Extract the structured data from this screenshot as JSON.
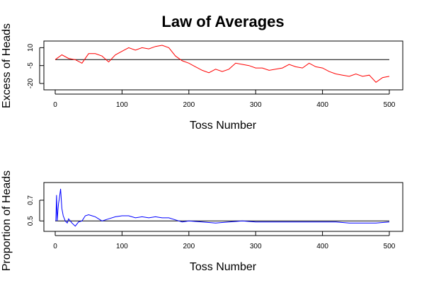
{
  "page": {
    "title": "Law of Averages"
  },
  "chart_data": [
    {
      "type": "line",
      "title": "",
      "xlabel": "Toss Number",
      "ylabel": "Excess of Heads",
      "xlim": [
        0,
        500
      ],
      "ylim": [
        -20,
        12
      ],
      "x_ticks": [
        0,
        100,
        200,
        300,
        400,
        500
      ],
      "y_ticks": [
        10,
        -5,
        -20
      ],
      "x_tick_labels": [
        "0",
        "100",
        "200",
        "300",
        "400",
        "500"
      ],
      "y_tick_labels": [
        "10",
        "-5",
        "-20"
      ],
      "reference_line": 0,
      "reference_color": "#000000",
      "color": "#ff0000",
      "grid": false,
      "x": [
        0,
        10,
        20,
        30,
        40,
        50,
        60,
        70,
        80,
        90,
        100,
        110,
        120,
        130,
        140,
        150,
        160,
        170,
        180,
        190,
        200,
        210,
        220,
        230,
        240,
        250,
        260,
        270,
        280,
        290,
        300,
        310,
        320,
        330,
        340,
        350,
        360,
        370,
        380,
        390,
        400,
        410,
        420,
        430,
        440,
        450,
        460,
        470,
        480,
        490,
        500
      ],
      "values": [
        0,
        4,
        1,
        0,
        -3,
        5,
        5,
        3,
        -2,
        4,
        7,
        10,
        8,
        10,
        9,
        11,
        12,
        10,
        3,
        -1,
        -3,
        -6,
        -9,
        -11,
        -8,
        -10,
        -8,
        -3,
        -4,
        -5,
        -7,
        -7,
        -9,
        -8,
        -7,
        -4,
        -6,
        -7,
        -3,
        -6,
        -7,
        -10,
        -12,
        -13,
        -14,
        -12,
        -14,
        -13,
        -19,
        -15,
        -14
      ]
    },
    {
      "type": "line",
      "title": "",
      "xlabel": "Toss Number",
      "ylabel": "Proportion of Heads",
      "xlim": [
        0,
        500
      ],
      "ylim": [
        0.42,
        0.85
      ],
      "x_ticks": [
        0,
        100,
        200,
        300,
        400,
        500
      ],
      "y_ticks": [
        0.5,
        0.7
      ],
      "x_tick_labels": [
        "0",
        "100",
        "200",
        "300",
        "400",
        "500"
      ],
      "y_tick_labels": [
        "0.5",
        "0.7"
      ],
      "reference_line": 0.5,
      "reference_color": "#000000",
      "color": "#0000ff",
      "grid": false,
      "x": [
        1,
        2,
        3,
        4,
        5,
        6,
        8,
        10,
        12,
        15,
        18,
        20,
        25,
        30,
        35,
        40,
        45,
        50,
        60,
        70,
        80,
        90,
        100,
        110,
        120,
        130,
        140,
        150,
        160,
        170,
        180,
        190,
        200,
        220,
        240,
        260,
        280,
        300,
        320,
        340,
        360,
        380,
        400,
        420,
        440,
        460,
        480,
        500
      ],
      "values": [
        0.5,
        0.75,
        0.5,
        0.6,
        0.67,
        0.71,
        0.81,
        0.62,
        0.55,
        0.5,
        0.48,
        0.52,
        0.48,
        0.45,
        0.49,
        0.5,
        0.55,
        0.56,
        0.54,
        0.5,
        0.52,
        0.54,
        0.55,
        0.55,
        0.53,
        0.54,
        0.53,
        0.54,
        0.53,
        0.53,
        0.51,
        0.49,
        0.5,
        0.49,
        0.48,
        0.49,
        0.5,
        0.49,
        0.49,
        0.49,
        0.49,
        0.49,
        0.49,
        0.49,
        0.48,
        0.48,
        0.48,
        0.49
      ]
    }
  ]
}
